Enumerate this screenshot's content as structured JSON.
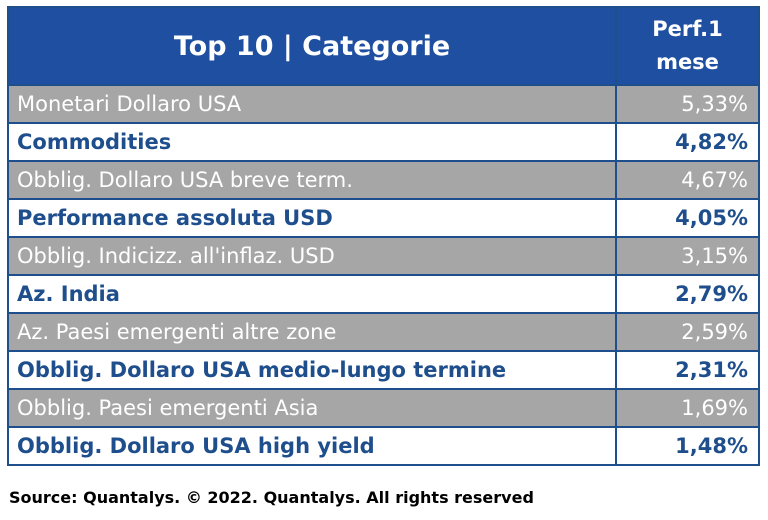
{
  "header": {
    "title": "Top 10 | Categorie",
    "perf_line1": "Perf.1",
    "perf_line2": "mese"
  },
  "rows": [
    {
      "category": "Monetari Dollaro USA",
      "perf": "5,33%"
    },
    {
      "category": "Commodities",
      "perf": "4,82%"
    },
    {
      "category": "Obblig. Dollaro USA breve term.",
      "perf": "4,67%"
    },
    {
      "category": "Performance assoluta USD",
      "perf": "4,05%"
    },
    {
      "category": "Obblig. Indicizz. all'inflaz. USD",
      "perf": "3,15%"
    },
    {
      "category": "Az. India",
      "perf": "2,79%"
    },
    {
      "category": "Az. Paesi emergenti altre zone",
      "perf": "2,59%"
    },
    {
      "category": "Obblig. Dollaro USA medio-lungo termine",
      "perf": "2,31%"
    },
    {
      "category": "Obblig. Paesi emergenti Asia",
      "perf": "1,69%"
    },
    {
      "category": "Obblig. Dollaro USA high yield",
      "perf": "1,48%"
    }
  ],
  "source": "Source: Quantalys. © 2022. Quantalys. All rights reserved",
  "colors": {
    "header_bg": "#1f4fa0",
    "accent_text": "#1f4e8c",
    "stripe_gray": "#a6a6a6"
  },
  "chart_data": {
    "type": "table",
    "columns": [
      "Top 10 | Categorie",
      "Perf.1 mese"
    ],
    "rows": [
      [
        "Monetari Dollaro USA",
        "5,33%"
      ],
      [
        "Commodities",
        "4,82%"
      ],
      [
        "Obblig. Dollaro USA breve term.",
        "4,67%"
      ],
      [
        "Performance assoluta USD",
        "4,05%"
      ],
      [
        "Obblig. Indicizz. all'inflaz. USD",
        "3,15%"
      ],
      [
        "Az. India",
        "2,79%"
      ],
      [
        "Az. Paesi emergenti altre zone",
        "2,59%"
      ],
      [
        "Obblig. Dollaro USA medio-lungo termine",
        "2,31%"
      ],
      [
        "Obblig. Paesi emergenti Asia",
        "1,69%"
      ],
      [
        "Obblig. Dollaro USA high yield",
        "1,48%"
      ]
    ]
  }
}
